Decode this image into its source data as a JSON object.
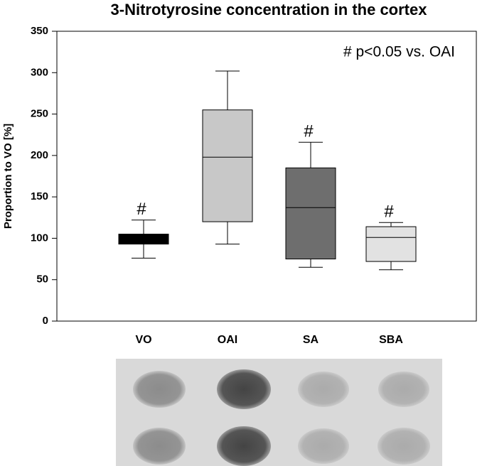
{
  "chart_data": {
    "type": "box",
    "title": "3-Nitrotyrosine concentration in the cortex",
    "y_label": "Proportion to VO [%]",
    "annotation": "# p<0.05 vs. OAI",
    "categories": [
      "VO",
      "OAI",
      "SA",
      "SBA"
    ],
    "marks": [
      "#",
      null,
      "#",
      "#"
    ],
    "colors": [
      "#000000",
      "#c8c8c8",
      "#6e6e6e",
      "#e2e2e2"
    ],
    "boxes": [
      {
        "min": 76,
        "q1": 93,
        "median": 100,
        "q3": 105,
        "max": 122
      },
      {
        "min": 93,
        "q1": 120,
        "median": 198,
        "q3": 255,
        "max": 302
      },
      {
        "min": 65,
        "q1": 75,
        "median": 137,
        "q3": 185,
        "max": 216
      },
      {
        "min": 62,
        "q1": 72,
        "median": 101,
        "q3": 114,
        "max": 119
      }
    ],
    "ylim": [
      0,
      350
    ],
    "yticks": [
      0,
      50,
      100,
      150,
      200,
      250,
      300,
      350
    ]
  }
}
